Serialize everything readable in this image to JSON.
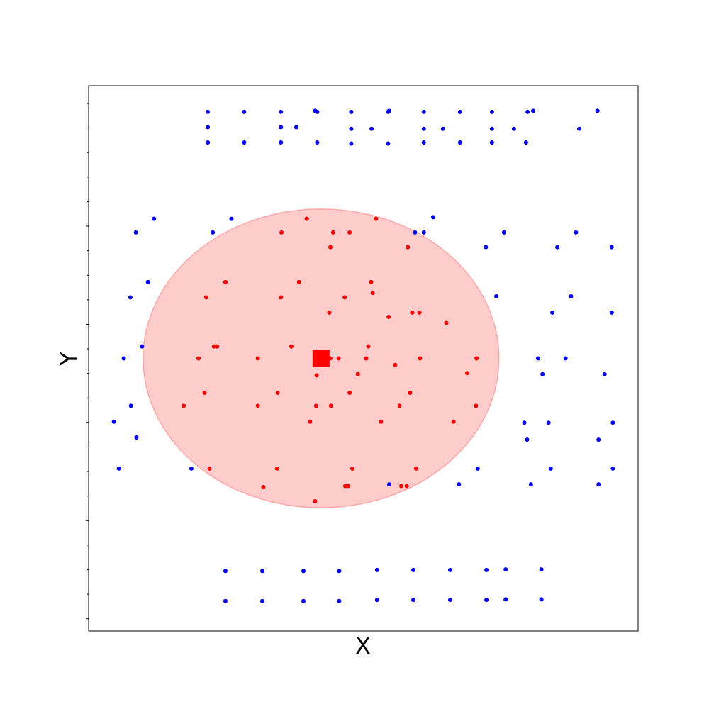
{
  "chart_data": {
    "type": "scatter",
    "title": "",
    "xlabel": "X",
    "ylabel": "Y",
    "xlim": [
      0,
      100
    ],
    "ylim": [
      0,
      100
    ],
    "grid": false,
    "ticks": {
      "x_major": [],
      "y_minor_step": 4.5
    },
    "colors": {
      "inside": "#ff0000",
      "outside": "#0000ff",
      "region": "#ff0000",
      "region_alpha": 0.2
    },
    "center": {
      "x": 42.3,
      "y": 50.0,
      "marker": "square"
    },
    "region": {
      "shape": "ellipse",
      "cx": 42.3,
      "cy": 50.0,
      "rx": 32.4,
      "ry": 27.4
    },
    "series": [
      {
        "points": [
          [
            39.7,
            75.6
          ],
          [
            35.1,
            73.1
          ],
          [
            52.3,
            75.6
          ],
          [
            47.5,
            73.1
          ],
          [
            44.5,
            73.1
          ],
          [
            58.1,
            70.4
          ],
          [
            44.0,
            70.4
          ],
          [
            24.9,
            64.0
          ],
          [
            38.3,
            64.0
          ],
          [
            51.4,
            64.0
          ],
          [
            21.4,
            61.2
          ],
          [
            35.0,
            61.2
          ],
          [
            46.6,
            61.2
          ],
          [
            60.2,
            58.4
          ],
          [
            54.6,
            57.6
          ],
          [
            58.9,
            58.4
          ],
          [
            51.7,
            62.0
          ],
          [
            43.8,
            58.4
          ],
          [
            22.8,
            52.2
          ],
          [
            23.4,
            52.2
          ],
          [
            36.9,
            52.2
          ],
          [
            50.9,
            52.2
          ],
          [
            30.8,
            50.0
          ],
          [
            20.0,
            50.0
          ],
          [
            50.5,
            50.0
          ],
          [
            60.3,
            50.0
          ],
          [
            65.1,
            56.5
          ],
          [
            70.6,
            50.0
          ],
          [
            45.5,
            50.0
          ],
          [
            44.0,
            50.0
          ],
          [
            49.0,
            47.1
          ],
          [
            41.5,
            46.9
          ],
          [
            55.8,
            48.8
          ],
          [
            68.9,
            47.3
          ],
          [
            21.1,
            43.7
          ],
          [
            34.4,
            43.7
          ],
          [
            47.5,
            43.7
          ],
          [
            58.5,
            43.7
          ],
          [
            17.3,
            41.3
          ],
          [
            30.8,
            41.3
          ],
          [
            41.4,
            41.3
          ],
          [
            44.1,
            41.3
          ],
          [
            56.6,
            41.3
          ],
          [
            70.5,
            41.3
          ],
          [
            40.3,
            38.4
          ],
          [
            53.2,
            38.4
          ],
          [
            66.4,
            38.4
          ],
          [
            22.0,
            29.8
          ],
          [
            34.3,
            29.8
          ],
          [
            48.0,
            29.8
          ],
          [
            59.6,
            29.8
          ],
          [
            47.2,
            26.6
          ],
          [
            46.7,
            26.6
          ],
          [
            31.8,
            26.4
          ],
          [
            57.9,
            26.6
          ],
          [
            56.9,
            26.6
          ],
          [
            41.2,
            23.8
          ]
        ]
      },
      {
        "points": [
          [
            21.7,
            95.2
          ],
          [
            28.3,
            95.2
          ],
          [
            35.0,
            95.2
          ],
          [
            41.6,
            95.2
          ],
          [
            41.2,
            95.4
          ],
          [
            47.8,
            95.2
          ],
          [
            54.5,
            95.2
          ],
          [
            54.7,
            95.4
          ],
          [
            61.0,
            95.2
          ],
          [
            67.6,
            95.2
          ],
          [
            73.4,
            95.2
          ],
          [
            79.9,
            95.2
          ],
          [
            80.9,
            95.4
          ],
          [
            92.6,
            95.4
          ],
          [
            21.7,
            92.4
          ],
          [
            35.0,
            92.4
          ],
          [
            37.8,
            92.4
          ],
          [
            47.8,
            92.1
          ],
          [
            51.5,
            92.1
          ],
          [
            61.0,
            92.1
          ],
          [
            64.5,
            92.1
          ],
          [
            73.4,
            92.1
          ],
          [
            77.4,
            92.1
          ],
          [
            89.3,
            92.1
          ],
          [
            21.7,
            89.6
          ],
          [
            28.3,
            89.6
          ],
          [
            35.0,
            89.6
          ],
          [
            41.6,
            89.6
          ],
          [
            47.8,
            89.4
          ],
          [
            54.5,
            89.4
          ],
          [
            61.0,
            89.6
          ],
          [
            67.6,
            89.6
          ],
          [
            73.4,
            89.6
          ],
          [
            79.6,
            89.6
          ],
          [
            11.9,
            75.6
          ],
          [
            26.0,
            75.6
          ],
          [
            62.7,
            75.9
          ],
          [
            8.6,
            73.1
          ],
          [
            22.6,
            73.1
          ],
          [
            59.4,
            73.1
          ],
          [
            61.0,
            73.1
          ],
          [
            75.6,
            73.1
          ],
          [
            88.7,
            73.1
          ],
          [
            72.3,
            70.4
          ],
          [
            85.3,
            70.4
          ],
          [
            95.2,
            70.4
          ],
          [
            10.8,
            64.0
          ],
          [
            7.6,
            61.2
          ],
          [
            74.2,
            61.4
          ],
          [
            87.8,
            61.4
          ],
          [
            84.4,
            58.4
          ],
          [
            95.2,
            58.4
          ],
          [
            9.7,
            52.2
          ],
          [
            6.4,
            50.0
          ],
          [
            81.8,
            50.0
          ],
          [
            86.8,
            50.0
          ],
          [
            82.6,
            47.1
          ],
          [
            93.9,
            47.1
          ],
          [
            7.7,
            41.3
          ],
          [
            4.6,
            38.4
          ],
          [
            8.7,
            35.5
          ],
          [
            5.5,
            29.8
          ],
          [
            18.7,
            29.8
          ],
          [
            79.3,
            38.2
          ],
          [
            83.7,
            38.2
          ],
          [
            95.4,
            38.2
          ],
          [
            79.8,
            35.1
          ],
          [
            92.8,
            35.1
          ],
          [
            70.8,
            29.8
          ],
          [
            84.1,
            29.8
          ],
          [
            95.4,
            29.8
          ],
          [
            54.7,
            26.9
          ],
          [
            67.4,
            26.9
          ],
          [
            80.5,
            26.9
          ],
          [
            92.8,
            26.9
          ],
          [
            24.9,
            11.0
          ],
          [
            31.6,
            11.0
          ],
          [
            39.1,
            11.0
          ],
          [
            45.6,
            11.0
          ],
          [
            52.5,
            11.2
          ],
          [
            59.1,
            11.2
          ],
          [
            65.8,
            11.2
          ],
          [
            72.4,
            11.2
          ],
          [
            75.9,
            11.3
          ],
          [
            82.4,
            11.3
          ],
          [
            24.9,
            5.5
          ],
          [
            31.6,
            5.5
          ],
          [
            39.1,
            5.5
          ],
          [
            45.6,
            5.5
          ],
          [
            52.5,
            5.7
          ],
          [
            59.1,
            5.7
          ],
          [
            65.8,
            5.7
          ],
          [
            72.4,
            5.7
          ],
          [
            75.9,
            5.8
          ],
          [
            82.4,
            5.8
          ]
        ]
      }
    ]
  }
}
